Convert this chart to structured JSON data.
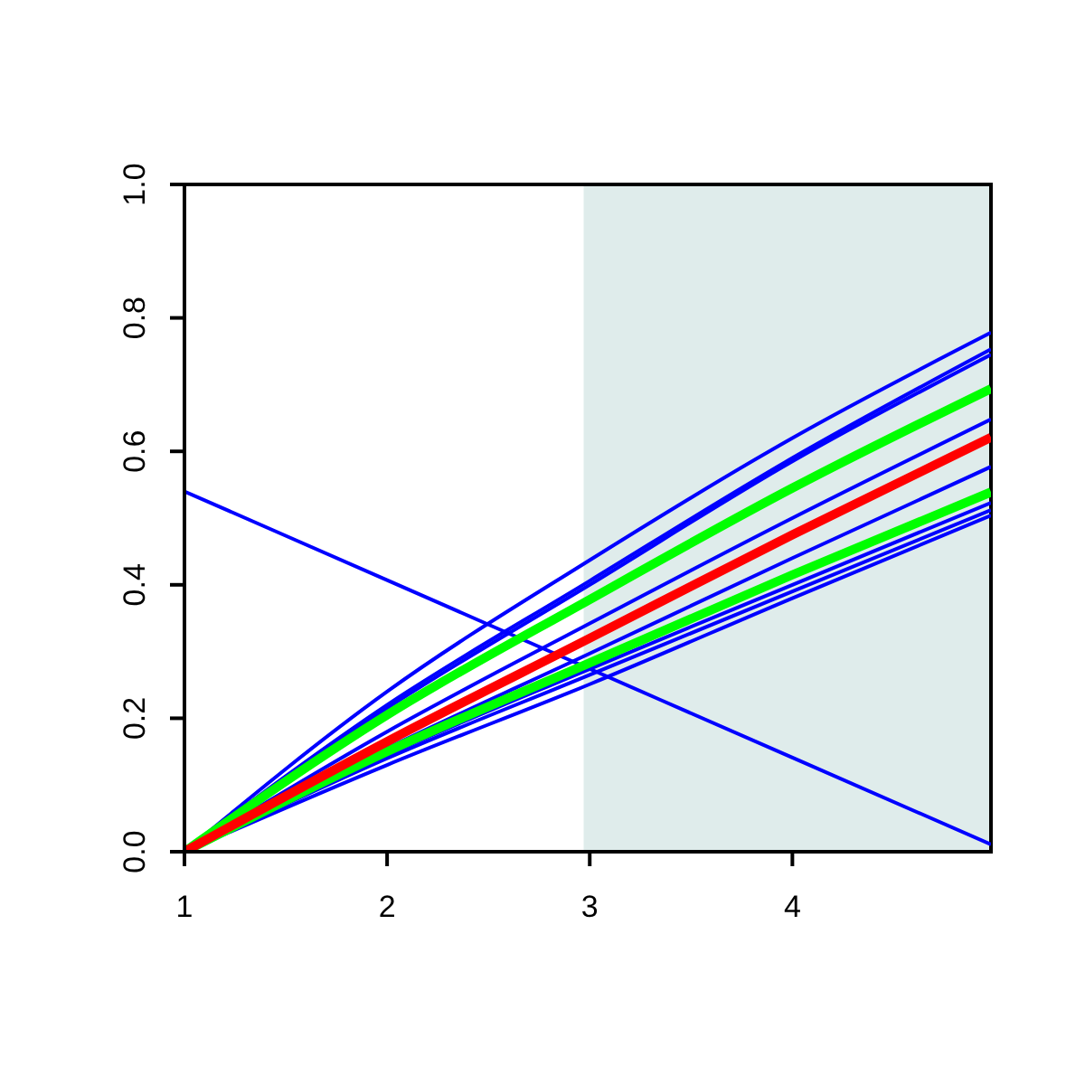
{
  "chart_data": {
    "type": "line",
    "x": [
      1,
      2,
      3,
      4,
      4.98
    ],
    "xlim": [
      1,
      4.98
    ],
    "xticks": [
      1,
      2,
      3,
      4
    ],
    "ylim": [
      0,
      1
    ],
    "yticks": [
      {
        "value": 0,
        "label": "0.0"
      },
      {
        "value": 0.2,
        "label": "0.2"
      },
      {
        "value": 0.4,
        "label": "0.4"
      },
      {
        "value": 0.6,
        "label": "0.6"
      },
      {
        "value": 0.8,
        "label": "0.8"
      },
      {
        "value": 1,
        "label": "1.0"
      }
    ],
    "grid": false,
    "legend": false,
    "marker": "none",
    "line_style": "solid",
    "bands": [
      {
        "axis": "x",
        "from": 2.97,
        "to": 4.98,
        "color": "#dfeceb"
      }
    ],
    "series": [
      {
        "color": "#0000ff",
        "values": [
          0,
          0.24,
          0.437,
          0.62,
          0.778
        ]
      },
      {
        "color": "#0000ff",
        "values": [
          0,
          0.22,
          0.406,
          0.59,
          0.753
        ]
      },
      {
        "color": "#0000ff",
        "values": [
          0,
          0.215,
          0.4,
          0.585,
          0.745
        ]
      },
      {
        "color": "#0000ff",
        "values": [
          0,
          0.18,
          0.342,
          0.5,
          0.648
        ]
      },
      {
        "color": "#0000ff",
        "values": [
          0,
          0.155,
          0.297,
          0.44,
          0.577
        ]
      },
      {
        "color": "#0000ff",
        "values": [
          0,
          0.145,
          0.274,
          0.4,
          0.523
        ]
      },
      {
        "color": "#0000ff",
        "values": [
          0,
          0.14,
          0.265,
          0.39,
          0.512
        ]
      },
      {
        "color": "#0000ff",
        "values": [
          0,
          0.13,
          0.251,
          0.38,
          0.504
        ]
      },
      {
        "color": "#0000ff",
        "values": [
          0.54,
          0.407,
          0.274,
          0.141,
          0.011
        ]
      },
      {
        "color": "#00ff00",
        "values": [
          0,
          0.205,
          0.378,
          0.545,
          0.694
        ]
      },
      {
        "color": "#00ff00",
        "values": [
          0,
          0.15,
          0.283,
          0.415,
          0.539
        ]
      },
      {
        "color": "#ff0000",
        "values": [
          0,
          0.165,
          0.32,
          0.475,
          0.621
        ]
      }
    ]
  }
}
